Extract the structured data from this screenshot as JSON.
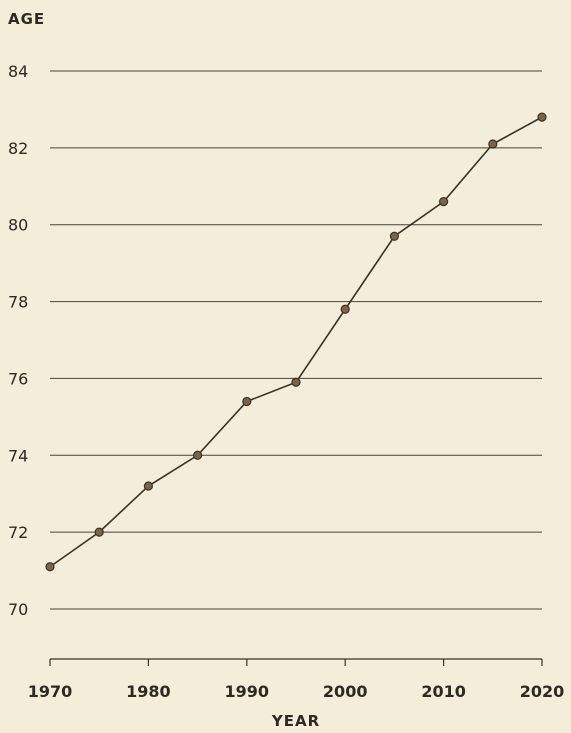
{
  "chart_data": {
    "type": "line",
    "title": "",
    "ylabel": "AGE",
    "xlabel": "YEAR",
    "x": [
      1970,
      1975,
      1980,
      1985,
      1990,
      1995,
      2000,
      2005,
      2010,
      2015,
      2020
    ],
    "series": [
      {
        "values": [
          71.1,
          72.0,
          73.2,
          74.0,
          75.4,
          75.9,
          77.8,
          79.7,
          80.6,
          82.1,
          82.8
        ]
      }
    ],
    "xlim": [
      1970,
      2020
    ],
    "ylim": [
      69,
      84
    ],
    "yticks": [
      70,
      72,
      74,
      76,
      78,
      80,
      82,
      84
    ],
    "xticks": [
      1970,
      1980,
      1990,
      2000,
      2010,
      2020
    ],
    "grid": "horizontal",
    "colors": {
      "background": "#f3edd9",
      "line": "#3a3326",
      "marker_fill": "#7a6548",
      "grid": "#4a4336",
      "text": "#2e2a22"
    }
  }
}
